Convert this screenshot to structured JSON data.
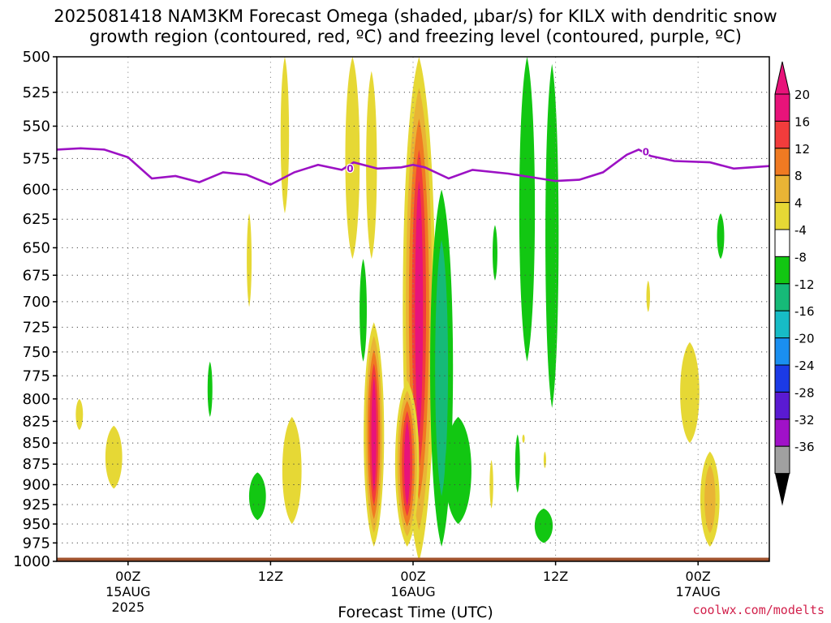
{
  "chart_data": {
    "type": "heatmap",
    "title_line1": "2025081418 NAM3KM Forecast Omega (shaded, μbar/s) for KILX with dendritic snow",
    "title_line2": "growth region (contoured, red, ºC) and freezing level (contoured, purple, ºC)",
    "xlabel": "Forecast Time (UTC)",
    "credit": "coolwx.com/modelts",
    "y_ticks": [
      "500",
      "525",
      "550",
      "575",
      "600",
      "625",
      "650",
      "675",
      "700",
      "725",
      "750",
      "775",
      "800",
      "825",
      "850",
      "875",
      "900",
      "925",
      "950",
      "975",
      "1000"
    ],
    "x_ticks": [
      {
        "hour": 6,
        "label": "00Z",
        "sub": "15AUG",
        "sub2": "2025"
      },
      {
        "hour": 18,
        "label": "12Z",
        "sub": "",
        "sub2": ""
      },
      {
        "hour": 30,
        "label": "00Z",
        "sub": "16AUG",
        "sub2": ""
      },
      {
        "hour": 42,
        "label": "12Z",
        "sub": "",
        "sub2": ""
      },
      {
        "hour": 54,
        "label": "00Z",
        "sub": "17AUG",
        "sub2": ""
      }
    ],
    "x_range_hours": [
      0,
      60
    ],
    "y_range_hpa": [
      500,
      1000
    ],
    "colorbar": {
      "labels": [
        "20",
        "16",
        "12",
        "8",
        "4",
        "-4",
        "-8",
        "-12",
        "-16",
        "-20",
        "-24",
        "-28",
        "-32",
        "-36"
      ],
      "colors": [
        "#e8137a",
        "#f23c3c",
        "#f07a22",
        "#e9b435",
        "#e6d835",
        "#ffffff",
        "#12c712",
        "#16ba78",
        "#17bcc6",
        "#1a8ff0",
        "#1b3ae6",
        "#5a1ad2",
        "#a011c8",
        "#a0a0a0"
      ],
      "top_arrow_color": "#e8137a",
      "bottom_arrow_color": "#000000"
    },
    "freezing_level": {
      "label": "0",
      "color": "#9c11c4",
      "points": [
        [
          0,
          568
        ],
        [
          2,
          567
        ],
        [
          4,
          568
        ],
        [
          6,
          574
        ],
        [
          8,
          591
        ],
        [
          10,
          589
        ],
        [
          12,
          594
        ],
        [
          14,
          586
        ],
        [
          16,
          588
        ],
        [
          18,
          596
        ],
        [
          20,
          586
        ],
        [
          22,
          580
        ],
        [
          24,
          584
        ],
        [
          25,
          578
        ],
        [
          27,
          583
        ],
        [
          29,
          582
        ],
        [
          30,
          580
        ],
        [
          31,
          582
        ],
        [
          33,
          591
        ],
        [
          35,
          584
        ],
        [
          38,
          587
        ],
        [
          40,
          590
        ],
        [
          42,
          593
        ],
        [
          44,
          592
        ],
        [
          46,
          586
        ],
        [
          48,
          572
        ],
        [
          49,
          568
        ],
        [
          50,
          573
        ],
        [
          52,
          577
        ],
        [
          55,
          578
        ],
        [
          57,
          583
        ],
        [
          60,
          581
        ]
      ]
    },
    "omega_features": [
      {
        "hour": 19.2,
        "p_top": 500,
        "p_bot": 620,
        "hw": 0.35,
        "levels": [
          "#e6d835"
        ]
      },
      {
        "hour": 24.9,
        "p_top": 500,
        "p_bot": 660,
        "hw": 0.6,
        "levels": [
          "#e6d835"
        ]
      },
      {
        "hour": 26.5,
        "p_top": 510,
        "p_bot": 660,
        "hw": 0.45,
        "levels": [
          "#e6d835"
        ]
      },
      {
        "hour": 16.2,
        "p_top": 620,
        "p_bot": 705,
        "hw": 0.2,
        "levels": [
          "#e6d835"
        ]
      },
      {
        "hour": 30.5,
        "p_top": 500,
        "p_bot": 1000,
        "hw": 1.35,
        "levels": [
          "#e6d835",
          "#e9b435",
          "#f07a22",
          "#f23c3c",
          "#e8137a"
        ]
      },
      {
        "hour": 26.7,
        "p_top": 720,
        "p_bot": 980,
        "hw": 0.85,
        "levels": [
          "#e6d835",
          "#e9b435",
          "#f07a22",
          "#f23c3c",
          "#e8137a"
        ]
      },
      {
        "hour": 29.5,
        "p_top": 780,
        "p_bot": 980,
        "hw": 1.0,
        "levels": [
          "#e6d835",
          "#e9b435",
          "#f07a22",
          "#f23c3c",
          "#e8137a"
        ]
      },
      {
        "hour": 19.8,
        "p_top": 820,
        "p_bot": 950,
        "hw": 0.8,
        "levels": [
          "#e6d835"
        ]
      },
      {
        "hour": 4.8,
        "p_top": 830,
        "p_bot": 905,
        "hw": 0.7,
        "levels": [
          "#e6d835"
        ]
      },
      {
        "hour": 1.9,
        "p_top": 800,
        "p_bot": 835,
        "hw": 0.3,
        "levels": [
          "#e6d835"
        ]
      },
      {
        "hour": 55.0,
        "p_top": 860,
        "p_bot": 980,
        "hw": 0.8,
        "levels": [
          "#e6d835",
          "#e9b435"
        ]
      },
      {
        "hour": 53.3,
        "p_top": 740,
        "p_bot": 850,
        "hw": 0.8,
        "levels": [
          "#e6d835"
        ]
      },
      {
        "hour": 49.8,
        "p_top": 680,
        "p_bot": 710,
        "hw": 0.15,
        "levels": [
          "#e6d835"
        ]
      },
      {
        "hour": 36.6,
        "p_top": 870,
        "p_bot": 930,
        "hw": 0.15,
        "levels": [
          "#e6d835"
        ]
      },
      {
        "hour": 39.3,
        "p_top": 840,
        "p_bot": 850,
        "hw": 0.1,
        "levels": [
          "#e6d835"
        ]
      },
      {
        "hour": 41.1,
        "p_top": 860,
        "p_bot": 880,
        "hw": 0.1,
        "levels": [
          "#e6d835"
        ]
      },
      {
        "hour": 32.4,
        "p_top": 600,
        "p_bot": 980,
        "hw": 0.95,
        "levels": [
          "#12c712",
          "#16ba78"
        ]
      },
      {
        "hour": 33.8,
        "p_top": 820,
        "p_bot": 950,
        "hw": 1.1,
        "levels": [
          "#12c712"
        ]
      },
      {
        "hour": 39.6,
        "p_top": 500,
        "p_bot": 760,
        "hw": 0.65,
        "levels": [
          "#12c712"
        ]
      },
      {
        "hour": 41.7,
        "p_top": 505,
        "p_bot": 810,
        "hw": 0.55,
        "levels": [
          "#12c712"
        ]
      },
      {
        "hour": 25.8,
        "p_top": 660,
        "p_bot": 760,
        "hw": 0.3,
        "levels": [
          "#12c712"
        ]
      },
      {
        "hour": 36.9,
        "p_top": 630,
        "p_bot": 680,
        "hw": 0.2,
        "levels": [
          "#12c712"
        ]
      },
      {
        "hour": 38.8,
        "p_top": 840,
        "p_bot": 910,
        "hw": 0.2,
        "levels": [
          "#12c712"
        ]
      },
      {
        "hour": 55.9,
        "p_top": 620,
        "p_bot": 660,
        "hw": 0.3,
        "levels": [
          "#12c712"
        ]
      },
      {
        "hour": 12.9,
        "p_top": 760,
        "p_bot": 820,
        "hw": 0.2,
        "levels": [
          "#12c712"
        ]
      },
      {
        "hour": 16.9,
        "p_top": 885,
        "p_bot": 945,
        "hw": 0.7,
        "levels": [
          "#12c712"
        ]
      },
      {
        "hour": 41.0,
        "p_top": 930,
        "p_bot": 975,
        "hw": 0.75,
        "levels": [
          "#12c712"
        ]
      }
    ],
    "surface_color": "#a0522d"
  }
}
